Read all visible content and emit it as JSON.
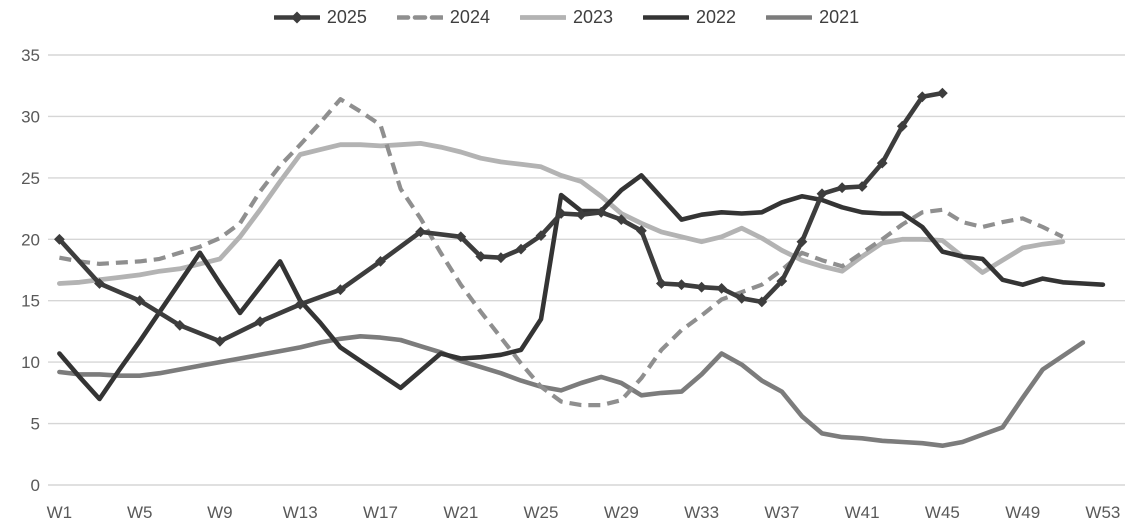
{
  "chart_data": {
    "type": "line",
    "title": "",
    "x_axis": {
      "label": "",
      "tick_weeks": [
        1,
        5,
        9,
        13,
        17,
        21,
        25,
        29,
        33,
        37,
        41,
        45,
        49,
        53
      ],
      "tick_labels": [
        "W1",
        "W5",
        "W9",
        "W13",
        "W17",
        "W21",
        "W25",
        "W29",
        "W33",
        "W37",
        "W41",
        "W45",
        "W49",
        "W53"
      ],
      "range": [
        1,
        53
      ]
    },
    "y_axis": {
      "label": "",
      "ticks": [
        0,
        5,
        10,
        15,
        20,
        25,
        30,
        35
      ],
      "range": [
        0,
        35
      ]
    },
    "grid": true,
    "legend_position": "top",
    "colors": {
      "grid": "#d6d6d6",
      "axis_text": "#595959",
      "legend_text": "#3f3f3f",
      "background": "#ffffff"
    },
    "series": [
      {
        "name": "2025",
        "color": "#3d3d3d",
        "dash": "solid",
        "marker": "diamond",
        "points": [
          [
            1,
            20.0
          ],
          [
            3,
            16.4
          ],
          [
            5,
            15.0
          ],
          [
            7,
            13.0
          ],
          [
            9,
            11.7
          ],
          [
            11,
            13.3
          ],
          [
            13,
            14.7
          ],
          [
            15,
            15.9
          ],
          [
            17,
            18.2
          ],
          [
            19,
            20.6
          ],
          [
            21,
            20.2
          ],
          [
            22,
            18.6
          ],
          [
            23,
            18.5
          ],
          [
            24,
            19.2
          ],
          [
            25,
            20.3
          ],
          [
            26,
            22.1
          ],
          [
            27,
            22.0
          ],
          [
            28,
            22.2
          ],
          [
            29,
            21.6
          ],
          [
            30,
            20.7
          ],
          [
            31,
            16.4
          ],
          [
            32,
            16.3
          ],
          [
            33,
            16.1
          ],
          [
            34,
            16.0
          ],
          [
            35,
            15.2
          ],
          [
            36,
            14.9
          ],
          [
            37,
            16.6
          ],
          [
            38,
            19.8
          ],
          [
            39,
            23.7
          ],
          [
            40,
            24.2
          ],
          [
            41,
            24.3
          ],
          [
            42,
            26.2
          ],
          [
            43,
            29.2
          ],
          [
            44,
            31.6
          ],
          [
            45,
            31.9
          ]
        ]
      },
      {
        "name": "2024",
        "color": "#8f8f8f",
        "dash": "dashed",
        "marker": "none",
        "points": [
          [
            1,
            18.5
          ],
          [
            2,
            18.2
          ],
          [
            3,
            18.0
          ],
          [
            4,
            18.1
          ],
          [
            5,
            18.2
          ],
          [
            6,
            18.4
          ],
          [
            7,
            18.9
          ],
          [
            8,
            19.4
          ],
          [
            9,
            20.1
          ],
          [
            10,
            21.3
          ],
          [
            11,
            23.9
          ],
          [
            12,
            26.0
          ],
          [
            13,
            27.7
          ],
          [
            14,
            29.5
          ],
          [
            15,
            31.4
          ],
          [
            16,
            30.4
          ],
          [
            17,
            29.3
          ],
          [
            18,
            24.1
          ],
          [
            19,
            21.7
          ],
          [
            20,
            18.9
          ],
          [
            21,
            16.3
          ],
          [
            22,
            14.1
          ],
          [
            23,
            12.0
          ],
          [
            24,
            9.9
          ],
          [
            25,
            8.0
          ],
          [
            26,
            6.8
          ],
          [
            27,
            6.5
          ],
          [
            28,
            6.5
          ],
          [
            29,
            6.9
          ],
          [
            30,
            8.7
          ],
          [
            31,
            11.0
          ],
          [
            32,
            12.6
          ],
          [
            33,
            13.8
          ],
          [
            34,
            15.1
          ],
          [
            35,
            15.7
          ],
          [
            36,
            16.3
          ],
          [
            37,
            17.5
          ],
          [
            38,
            18.9
          ],
          [
            39,
            18.3
          ],
          [
            40,
            17.8
          ],
          [
            41,
            18.9
          ],
          [
            42,
            20.0
          ],
          [
            43,
            21.2
          ],
          [
            44,
            22.2
          ],
          [
            45,
            22.4
          ],
          [
            46,
            21.4
          ],
          [
            47,
            21.0
          ],
          [
            48,
            21.4
          ],
          [
            49,
            21.7
          ],
          [
            50,
            21.0
          ],
          [
            51,
            20.2
          ]
        ]
      },
      {
        "name": "2023",
        "color": "#b3b3b3",
        "dash": "solid",
        "marker": "none",
        "points": [
          [
            1,
            16.4
          ],
          [
            2,
            16.5
          ],
          [
            3,
            16.7
          ],
          [
            4,
            16.9
          ],
          [
            5,
            17.1
          ],
          [
            6,
            17.4
          ],
          [
            7,
            17.6
          ],
          [
            8,
            18.0
          ],
          [
            9,
            18.4
          ],
          [
            10,
            20.2
          ],
          [
            11,
            22.4
          ],
          [
            12,
            24.7
          ],
          [
            13,
            26.9
          ],
          [
            14,
            27.3
          ],
          [
            15,
            27.7
          ],
          [
            16,
            27.7
          ],
          [
            17,
            27.6
          ],
          [
            18,
            27.7
          ],
          [
            19,
            27.8
          ],
          [
            20,
            27.5
          ],
          [
            21,
            27.1
          ],
          [
            22,
            26.6
          ],
          [
            23,
            26.3
          ],
          [
            24,
            26.1
          ],
          [
            25,
            25.9
          ],
          [
            26,
            25.2
          ],
          [
            27,
            24.7
          ],
          [
            28,
            23.5
          ],
          [
            29,
            22.1
          ],
          [
            30,
            21.3
          ],
          [
            31,
            20.6
          ],
          [
            32,
            20.2
          ],
          [
            33,
            19.8
          ],
          [
            34,
            20.2
          ],
          [
            35,
            20.9
          ],
          [
            36,
            20.1
          ],
          [
            37,
            19.1
          ],
          [
            38,
            18.3
          ],
          [
            39,
            17.8
          ],
          [
            40,
            17.4
          ],
          [
            41,
            18.6
          ],
          [
            42,
            19.7
          ],
          [
            43,
            20.0
          ],
          [
            44,
            20.0
          ],
          [
            45,
            19.9
          ],
          [
            46,
            18.6
          ],
          [
            47,
            17.3
          ],
          [
            48,
            18.3
          ],
          [
            49,
            19.3
          ],
          [
            50,
            19.6
          ],
          [
            51,
            19.8
          ]
        ]
      },
      {
        "name": "2022",
        "color": "#343434",
        "dash": "solid",
        "marker": "none",
        "points": [
          [
            1,
            10.7
          ],
          [
            2,
            8.8
          ],
          [
            3,
            7.0
          ],
          [
            4,
            9.4
          ],
          [
            5,
            11.7
          ],
          [
            6,
            14.1
          ],
          [
            7,
            16.5
          ],
          [
            8,
            18.9
          ],
          [
            9,
            16.4
          ],
          [
            10,
            14.0
          ],
          [
            11,
            16.1
          ],
          [
            12,
            18.2
          ],
          [
            13,
            15.0
          ],
          [
            14,
            13.2
          ],
          [
            15,
            11.2
          ],
          [
            16,
            10.1
          ],
          [
            17,
            9.0
          ],
          [
            18,
            7.9
          ],
          [
            19,
            9.3
          ],
          [
            20,
            10.7
          ],
          [
            21,
            10.3
          ],
          [
            22,
            10.4
          ],
          [
            23,
            10.6
          ],
          [
            24,
            11.0
          ],
          [
            25,
            13.5
          ],
          [
            26,
            23.6
          ],
          [
            27,
            22.3
          ],
          [
            28,
            22.3
          ],
          [
            29,
            24.0
          ],
          [
            30,
            25.2
          ],
          [
            31,
            23.4
          ],
          [
            32,
            21.6
          ],
          [
            33,
            22.0
          ],
          [
            34,
            22.2
          ],
          [
            35,
            22.1
          ],
          [
            36,
            22.2
          ],
          [
            37,
            23.0
          ],
          [
            38,
            23.5
          ],
          [
            39,
            23.2
          ],
          [
            40,
            22.6
          ],
          [
            41,
            22.2
          ],
          [
            42,
            22.1
          ],
          [
            43,
            22.1
          ],
          [
            44,
            21.0
          ],
          [
            45,
            19.0
          ],
          [
            46,
            18.6
          ],
          [
            47,
            18.4
          ],
          [
            48,
            16.7
          ],
          [
            49,
            16.3
          ],
          [
            50,
            16.8
          ],
          [
            51,
            16.5
          ],
          [
            52,
            16.4
          ],
          [
            53,
            16.3
          ]
        ]
      },
      {
        "name": "2021",
        "color": "#7c7c7c",
        "dash": "solid",
        "marker": "none",
        "points": [
          [
            1,
            9.2
          ],
          [
            2,
            9.0
          ],
          [
            3,
            9.0
          ],
          [
            4,
            8.9
          ],
          [
            5,
            8.9
          ],
          [
            6,
            9.1
          ],
          [
            7,
            9.4
          ],
          [
            8,
            9.7
          ],
          [
            9,
            10.0
          ],
          [
            10,
            10.3
          ],
          [
            11,
            10.6
          ],
          [
            12,
            10.9
          ],
          [
            13,
            11.2
          ],
          [
            14,
            11.6
          ],
          [
            15,
            11.9
          ],
          [
            16,
            12.1
          ],
          [
            17,
            12.0
          ],
          [
            18,
            11.8
          ],
          [
            19,
            11.3
          ],
          [
            20,
            10.8
          ],
          [
            21,
            10.1
          ],
          [
            22,
            9.6
          ],
          [
            23,
            9.1
          ],
          [
            24,
            8.5
          ],
          [
            25,
            8.0
          ],
          [
            26,
            7.7
          ],
          [
            27,
            8.3
          ],
          [
            28,
            8.8
          ],
          [
            29,
            8.3
          ],
          [
            30,
            7.3
          ],
          [
            31,
            7.5
          ],
          [
            32,
            7.6
          ],
          [
            33,
            9.0
          ],
          [
            34,
            10.7
          ],
          [
            35,
            9.8
          ],
          [
            36,
            8.5
          ],
          [
            37,
            7.6
          ],
          [
            38,
            5.6
          ],
          [
            39,
            4.2
          ],
          [
            40,
            3.9
          ],
          [
            41,
            3.8
          ],
          [
            42,
            3.6
          ],
          [
            43,
            3.5
          ],
          [
            44,
            3.4
          ],
          [
            45,
            3.2
          ],
          [
            46,
            3.5
          ],
          [
            47,
            4.1
          ],
          [
            48,
            4.7
          ],
          [
            49,
            7.1
          ],
          [
            50,
            9.4
          ],
          [
            51,
            10.5
          ],
          [
            52,
            11.6
          ]
        ]
      }
    ]
  }
}
